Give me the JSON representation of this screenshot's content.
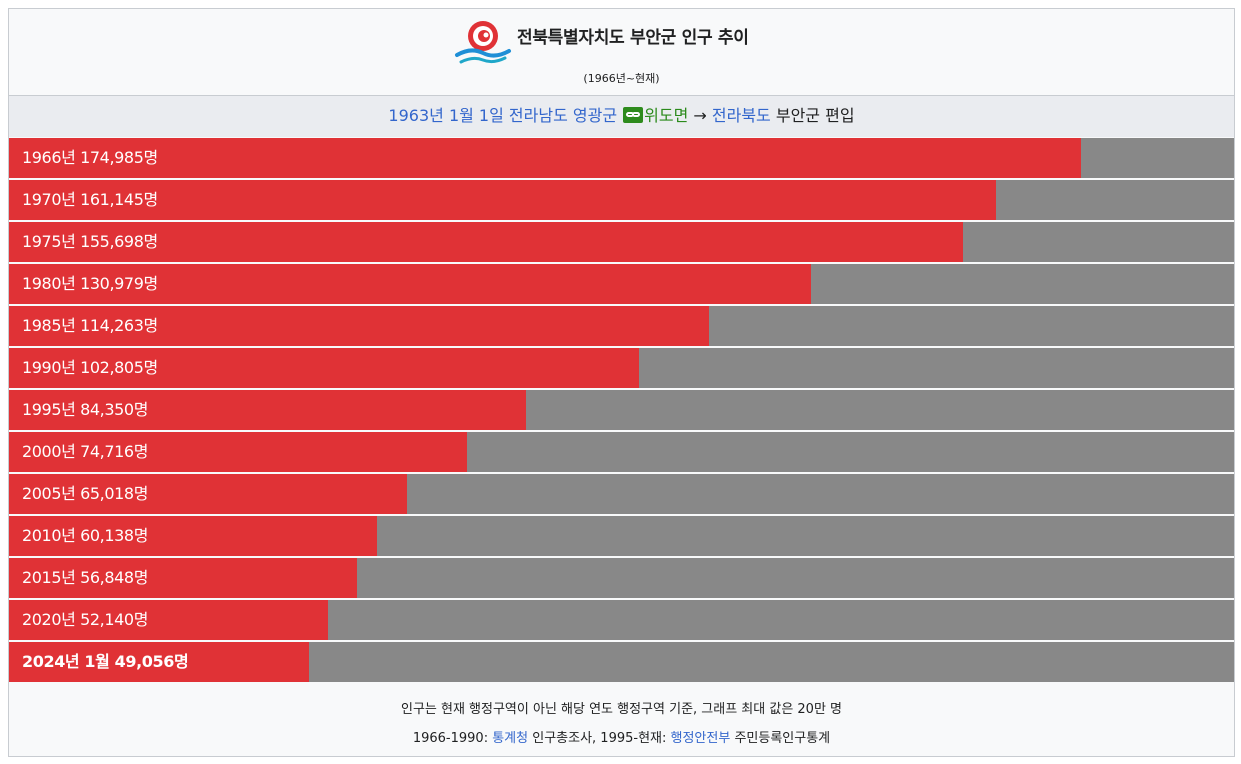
{
  "header": {
    "title": "전북특별자치도 부안군 인구 추이",
    "subtitle": "(1966년~현재)"
  },
  "band": {
    "part1_link": "1963년 1월 1일 전라남도 영광군",
    "icon": "chain-link-icon",
    "part2_green": "위도면",
    "arrow": " → ",
    "part3_link": "전라북도",
    "part4": " 부안군 편입"
  },
  "chart_data": {
    "type": "bar",
    "orientation": "horizontal",
    "xlim": [
      0,
      200000
    ],
    "categories": [
      "1966년",
      "1970년",
      "1975년",
      "1980년",
      "1985년",
      "1990년",
      "1995년",
      "2000년",
      "2005년",
      "2010년",
      "2015년",
      "2020년",
      "2024년 1월"
    ],
    "values": [
      174985,
      161145,
      155698,
      130979,
      114263,
      102805,
      84350,
      74716,
      65018,
      60138,
      56848,
      52140,
      49056
    ],
    "labels": [
      "1966년 174,985명",
      "1970년 161,145명",
      "1975년 155,698명",
      "1980년 130,979명",
      "1985년 114,263명",
      "1990년 102,805명",
      "1995년 84,350명",
      "2000년 74,716명",
      "2005년 65,018명",
      "2010년 60,138명",
      "2015년 56,848명",
      "2020년 52,140명",
      "2024년 1월 49,056명"
    ],
    "bold_last": true,
    "colors": {
      "fill": "#e03236",
      "remainder": "#888888"
    }
  },
  "footer": {
    "line1": "인구는 현재 행정구역이 아닌 해당 연도 행정구역 기준, 그래프 최대 값은 20만 명",
    "line2_a": "1966-1990: ",
    "line2_link1": "통계청",
    "line2_b": " 인구총조사, 1995-현재: ",
    "line2_link2": "행정안전부",
    "line2_c": " 주민등록인구통계"
  },
  "colors": {
    "link": "#3366cc",
    "green": "#2b8a1b",
    "logo_red": "#e03236",
    "logo_blue": "#1f8fd6"
  }
}
